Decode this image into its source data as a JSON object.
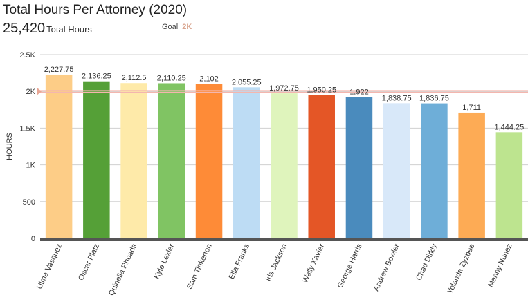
{
  "header": {
    "title": "Total Hours Per Attorney (2020)",
    "total_value": "25,420",
    "total_label": "Total Hours",
    "goal_label": "Goal",
    "goal_value": "2K"
  },
  "colors": {
    "goal_line": "#f4b6ae",
    "goal_marker": "#e8a594",
    "grid": "#d0d0d0",
    "baseline": "#555555"
  },
  "chart_data": {
    "type": "bar",
    "title": "Total Hours Per Attorney (2020)",
    "xlabel": "",
    "ylabel": "HOURS",
    "ylim": [
      0,
      2500
    ],
    "yticks": [
      0,
      500,
      1000,
      1500,
      2000,
      2500
    ],
    "ytick_labels": [
      "0",
      "500",
      "1K",
      "1.5K",
      "2K",
      "2.5K"
    ],
    "goal": 2000,
    "categories": [
      "Ulma Vasquez",
      "Oscar Platz",
      "Quinella Rhoads",
      "Kyle Lexler",
      "Sam Tinkerton",
      "Ella Franks",
      "Iris Jackson",
      "Wally Xavier",
      "George Harris",
      "Andrew Bowler",
      "Chad Dirkly",
      "Yolanda Zyzbee",
      "Manny Nunez"
    ],
    "values": [
      2227.75,
      2136.25,
      2112.5,
      2110.25,
      2102,
      2055.25,
      1972.75,
      1950.25,
      1922,
      1838.75,
      1836.75,
      1711,
      1444.25
    ],
    "value_labels": [
      "2,227.75",
      "2,136.25",
      "2,112.5",
      "2,110.25",
      "2,102",
      "2,055.25",
      "1,972.75",
      "1,950.25",
      "1,922",
      "1,838.75",
      "1,836.75",
      "1,711",
      "1,444.25"
    ],
    "bar_colors": [
      "#fdcd87",
      "#55a037",
      "#feeaa9",
      "#80c463",
      "#fe8b37",
      "#bddcf4",
      "#dff4bc",
      "#e45626",
      "#4a8bbd",
      "#d8e8f9",
      "#6eaed8",
      "#fdab55",
      "#bde48f"
    ]
  }
}
